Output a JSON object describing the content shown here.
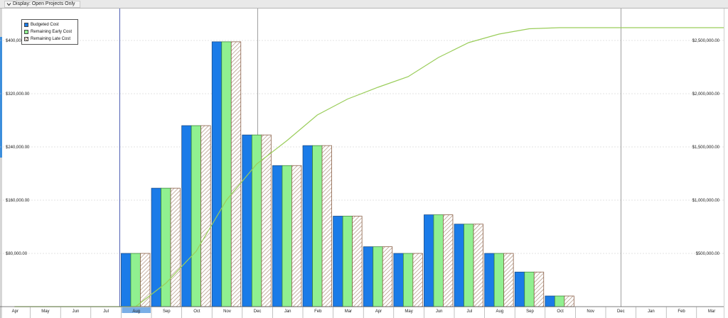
{
  "filter": {
    "label": "Display: Open Projects Only"
  },
  "legend": {
    "items": [
      {
        "label": "Budgeted Cost",
        "color": "#1a7be8"
      },
      {
        "label": "Remaining Early Cost",
        "color": "#90f090"
      },
      {
        "label": "Remaining Late Cost",
        "color": "#e8d8c8"
      }
    ]
  },
  "colors": {
    "budgeted": "#1a7be8",
    "early": "#90f090",
    "late_stripe": "#a0806a",
    "curve": "#9acd5a",
    "grid": "#c8c8c8",
    "data_date_line": "#4a5ab0",
    "year_line": "#888888"
  },
  "chart_data": {
    "type": "bar",
    "categories": [
      "Apr",
      "May",
      "Jun",
      "Jul",
      "Aug",
      "Sep",
      "Oct",
      "Nov",
      "Dec",
      "Jan",
      "Feb",
      "Mar",
      "Apr",
      "May",
      "Jun",
      "Jul",
      "Aug",
      "Sep",
      "Oct",
      "Nov",
      "Dec",
      "Jan",
      "Feb",
      "Mar"
    ],
    "series": [
      {
        "name": "Budgeted Cost",
        "values": [
          0,
          0,
          0,
          0,
          80000,
          178000,
          272000,
          398000,
          258000,
          212000,
          242000,
          136000,
          90000,
          80000,
          138000,
          124000,
          80000,
          52000,
          16000,
          0,
          0,
          0,
          0,
          0
        ]
      },
      {
        "name": "Remaining Early Cost",
        "values": [
          0,
          0,
          0,
          0,
          80000,
          178000,
          272000,
          398000,
          258000,
          212000,
          242000,
          136000,
          90000,
          80000,
          138000,
          124000,
          80000,
          52000,
          16000,
          0,
          0,
          0,
          0,
          0
        ]
      },
      {
        "name": "Remaining Late Cost",
        "values": [
          0,
          0,
          0,
          0,
          80000,
          178000,
          272000,
          398000,
          258000,
          212000,
          242000,
          136000,
          90000,
          80000,
          138000,
          124000,
          80000,
          52000,
          16000,
          0,
          0,
          0,
          0,
          0
        ]
      }
    ],
    "cumulative": {
      "values": [
        0,
        0,
        0,
        0,
        0,
        220000,
        520000,
        1000000,
        1340000,
        1560000,
        1800000,
        1950000,
        2060000,
        2160000,
        2340000,
        2480000,
        2560000,
        2610000,
        2620000,
        2620000,
        2620000,
        2620000,
        2620000,
        2620000
      ]
    },
    "ylim": [
      0,
      448000
    ],
    "y2lim": [
      0,
      2800000
    ],
    "yticks": [
      "$80,000.00",
      "$160,000.00",
      "$240,000.00",
      "$320,000.00",
      "$400,000.00"
    ],
    "ytick_values": [
      80000,
      160000,
      240000,
      320000,
      400000
    ],
    "y2ticks": [
      "$500,000.00",
      "$1,000,000.00",
      "$1,500,000.00",
      "$2,000,000.00",
      "$2,500,000.00"
    ],
    "y2tick_values": [
      500000,
      1000000,
      1500000,
      2000000,
      2500000
    ],
    "data_date_index": 4,
    "year_boundary_indices": [
      9,
      21
    ],
    "grid": true,
    "legend_position": "top-left"
  }
}
